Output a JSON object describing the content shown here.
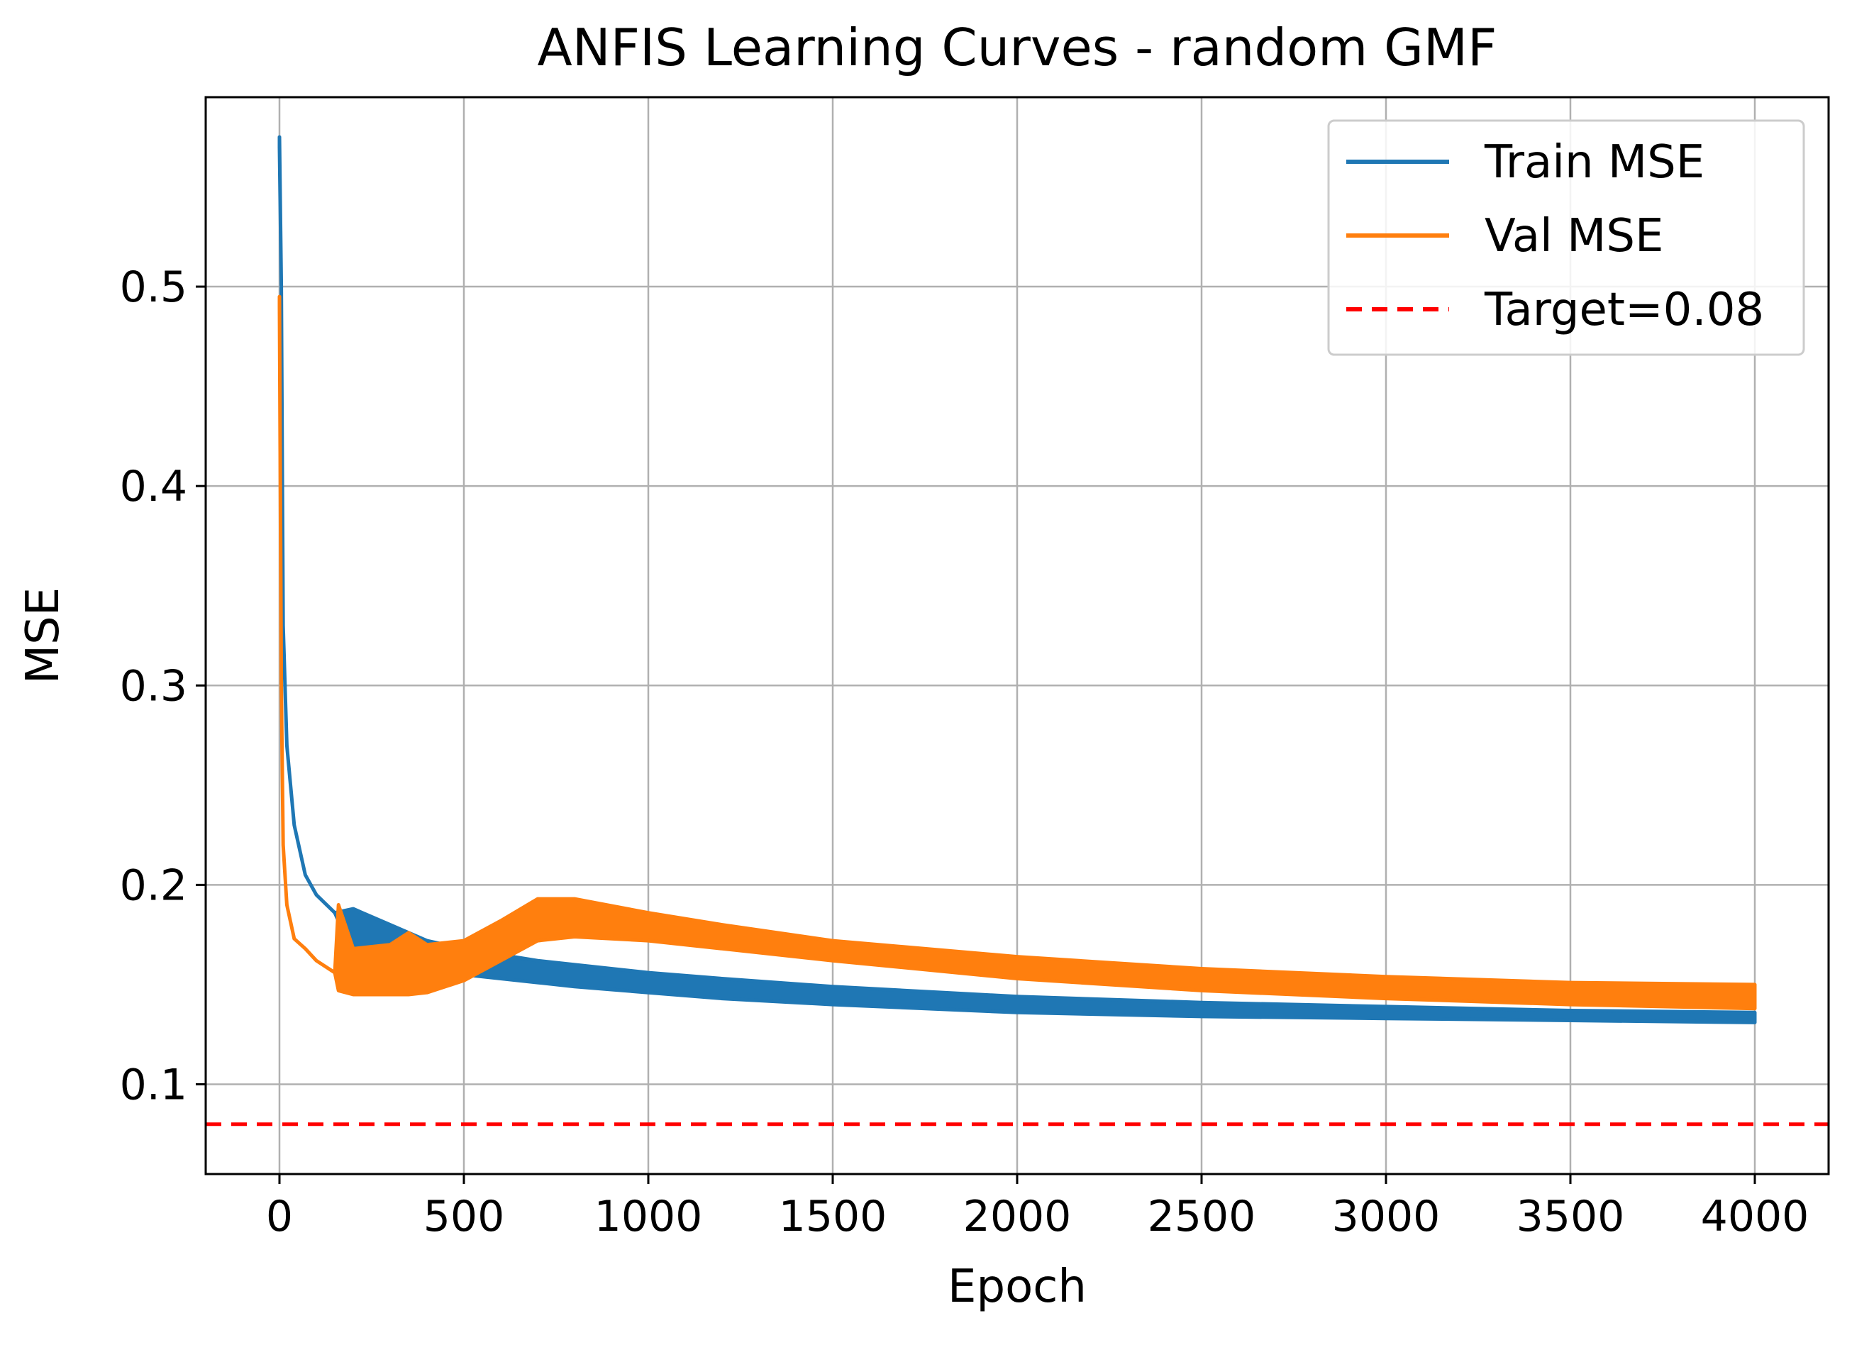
{
  "chart_data": {
    "type": "line",
    "title": "ANFIS Learning Curves - random GMF",
    "xlabel": "Epoch",
    "ylabel": "MSE",
    "xlim": [
      -200,
      4200
    ],
    "ylim": [
      0.055,
      0.595
    ],
    "xticks": [
      0,
      500,
      1000,
      1500,
      2000,
      2500,
      3000,
      3500,
      4000
    ],
    "xtick_labels": [
      "0",
      "500",
      "1000",
      "1500",
      "2000",
      "2500",
      "3000",
      "3500",
      "4000"
    ],
    "yticks": [
      0.1,
      0.2,
      0.3,
      0.4,
      0.5
    ],
    "ytick_labels": [
      "0.1",
      "0.2",
      "0.3",
      "0.4",
      "0.5"
    ],
    "grid": true,
    "legend_position": "top-right",
    "series": [
      {
        "name": "Train MSE",
        "color": "#1f77b4",
        "x": [
          0,
          5,
          10,
          20,
          40,
          70,
          100,
          150,
          200,
          300,
          400,
          500,
          600,
          700,
          800,
          1000,
          1200,
          1500,
          2000,
          2500,
          3000,
          3500,
          4000
        ],
        "y_low": [
          0.57,
          0.5,
          0.33,
          0.27,
          0.23,
          0.205,
          0.195,
          0.186,
          0.165,
          0.16,
          0.157,
          0.155,
          0.153,
          0.151,
          0.149,
          0.146,
          0.143,
          0.14,
          0.136,
          0.134,
          0.133,
          0.132,
          0.131
        ],
        "y_high": [
          0.575,
          0.5,
          0.33,
          0.27,
          0.23,
          0.205,
          0.195,
          0.186,
          0.188,
          0.18,
          0.172,
          0.168,
          0.165,
          0.162,
          0.16,
          0.156,
          0.153,
          0.149,
          0.144,
          0.141,
          0.139,
          0.137,
          0.136
        ]
      },
      {
        "name": "Val MSE",
        "color": "#ff7f0e",
        "x": [
          0,
          5,
          10,
          20,
          40,
          70,
          100,
          150,
          160,
          200,
          300,
          350,
          400,
          500,
          600,
          700,
          800,
          1000,
          1200,
          1500,
          2000,
          2500,
          3000,
          3500,
          4000
        ],
        "y_low": [
          0.49,
          0.3,
          0.22,
          0.19,
          0.173,
          0.168,
          0.162,
          0.156,
          0.147,
          0.145,
          0.145,
          0.145,
          0.146,
          0.152,
          0.162,
          0.172,
          0.174,
          0.172,
          0.168,
          0.162,
          0.153,
          0.147,
          0.143,
          0.14,
          0.138
        ],
        "y_high": [
          0.495,
          0.3,
          0.22,
          0.19,
          0.173,
          0.168,
          0.162,
          0.156,
          0.19,
          0.168,
          0.17,
          0.176,
          0.17,
          0.172,
          0.182,
          0.193,
          0.193,
          0.186,
          0.18,
          0.172,
          0.164,
          0.158,
          0.154,
          0.151,
          0.15
        ]
      },
      {
        "name": "Target=0.08",
        "color": "#ff0000",
        "style": "dashed",
        "y": 0.08
      }
    ]
  }
}
